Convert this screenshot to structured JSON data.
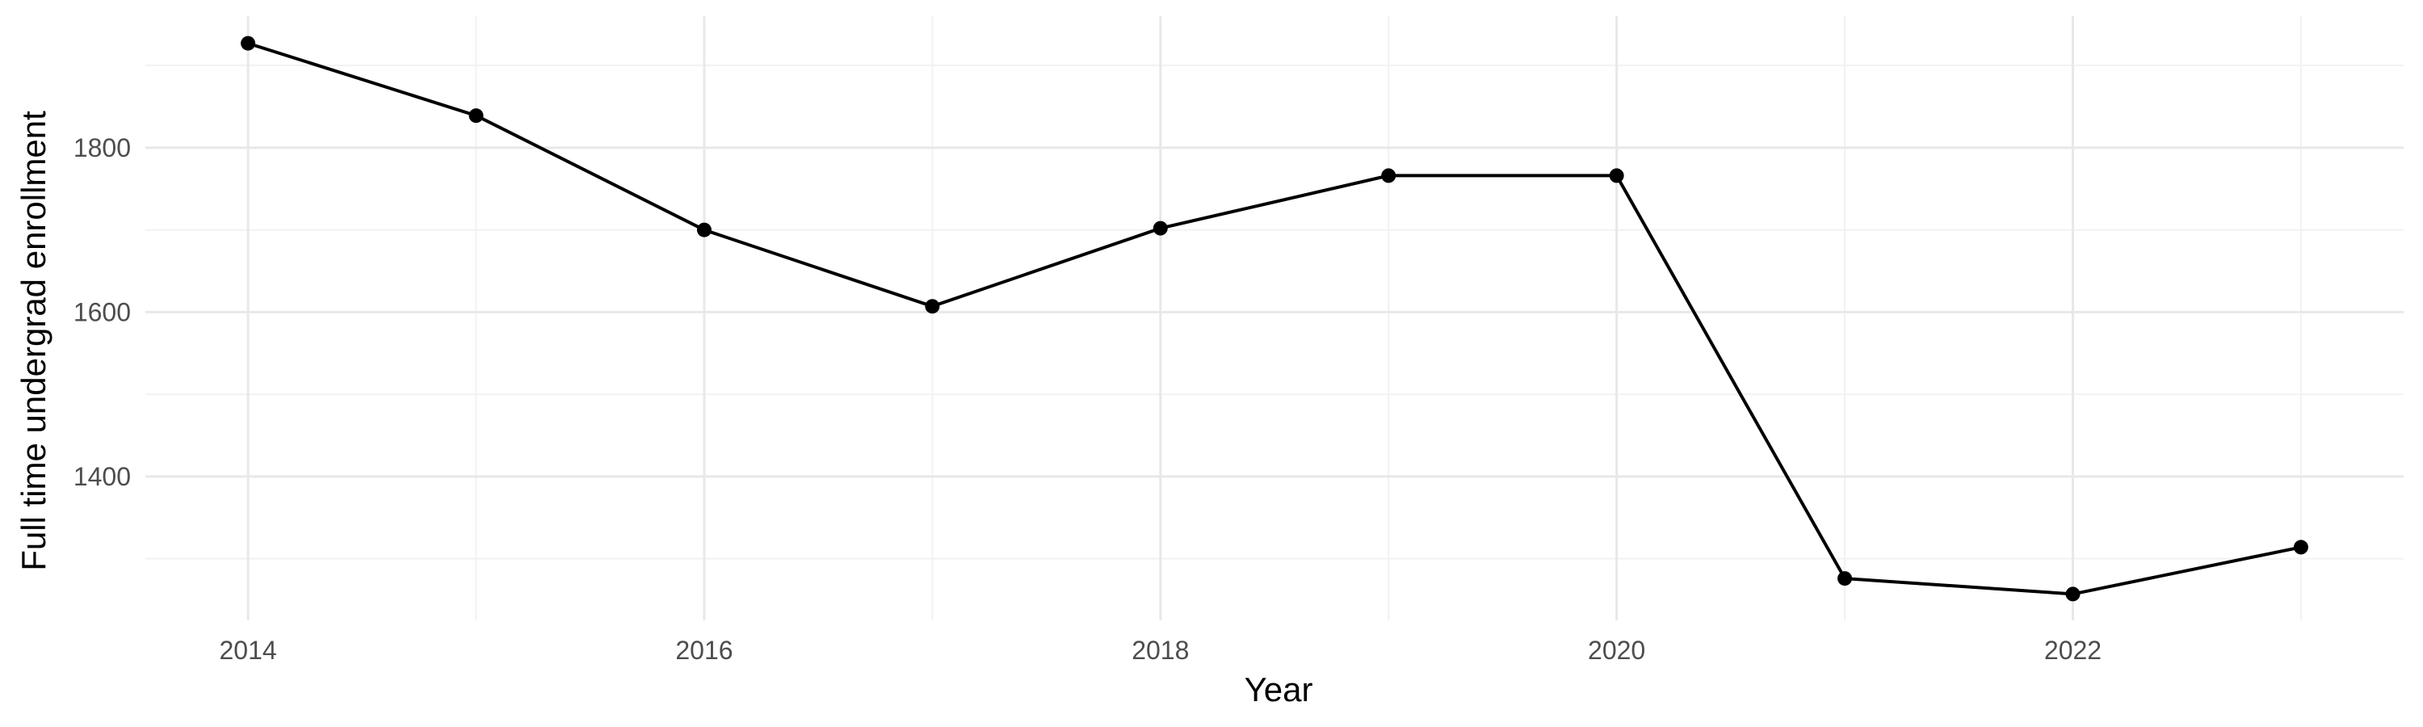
{
  "chart_data": {
    "type": "line",
    "xlabel": "Year",
    "ylabel": "Full time undergrad enrollment",
    "x": [
      2014,
      2015,
      2016,
      2017,
      2018,
      2019,
      2020,
      2021,
      2022,
      2023
    ],
    "series": [
      {
        "values": [
          1927,
          1839,
          1700,
          1607,
          1702,
          1766,
          1766,
          1276,
          1257,
          1314
        ]
      }
    ],
    "x_ticks": [
      2014,
      2016,
      2018,
      2020,
      2022
    ],
    "y_ticks": [
      1400,
      1600,
      1800
    ],
    "xlim": [
      2013.55,
      2023.45
    ],
    "ylim": [
      1225,
      1960
    ],
    "grid": true,
    "line_color": "#000000"
  }
}
